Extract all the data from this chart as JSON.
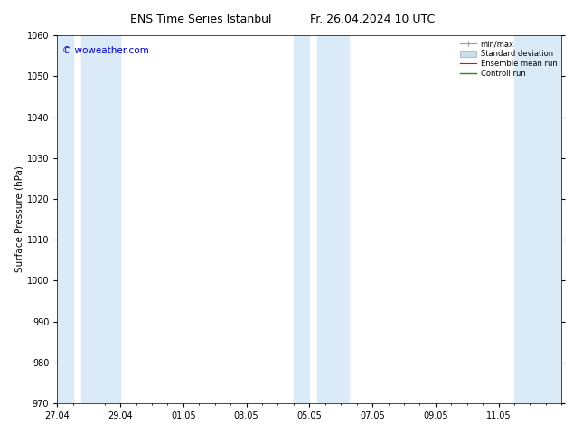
{
  "title_left": "ENS Time Series Istanbul",
  "title_right": "Fr. 26.04.2024 10 UTC",
  "ylabel": "Surface Pressure (hPa)",
  "ylim": [
    970,
    1060
  ],
  "yticks": [
    970,
    980,
    990,
    1000,
    1010,
    1020,
    1030,
    1040,
    1050,
    1060
  ],
  "xlim": [
    0,
    16
  ],
  "xtick_labels": [
    "27.04",
    "29.04",
    "01.05",
    "03.05",
    "05.05",
    "07.05",
    "09.05",
    "11.05"
  ],
  "xtick_positions": [
    0,
    2,
    4,
    6,
    8,
    10,
    12,
    14
  ],
  "shaded_ranges": [
    [
      0.0,
      0.5
    ],
    [
      0.75,
      2.0
    ],
    [
      7.5,
      8.0
    ],
    [
      8.25,
      9.25
    ],
    [
      14.5,
      16.0
    ]
  ],
  "band_color": "#daeaf7",
  "background_color": "#ffffff",
  "watermark": "© woweather.com",
  "watermark_color": "#0000cc",
  "title_fontsize": 9,
  "tick_fontsize": 7,
  "ylabel_fontsize": 7.5,
  "figsize": [
    6.34,
    4.9
  ],
  "dpi": 100
}
